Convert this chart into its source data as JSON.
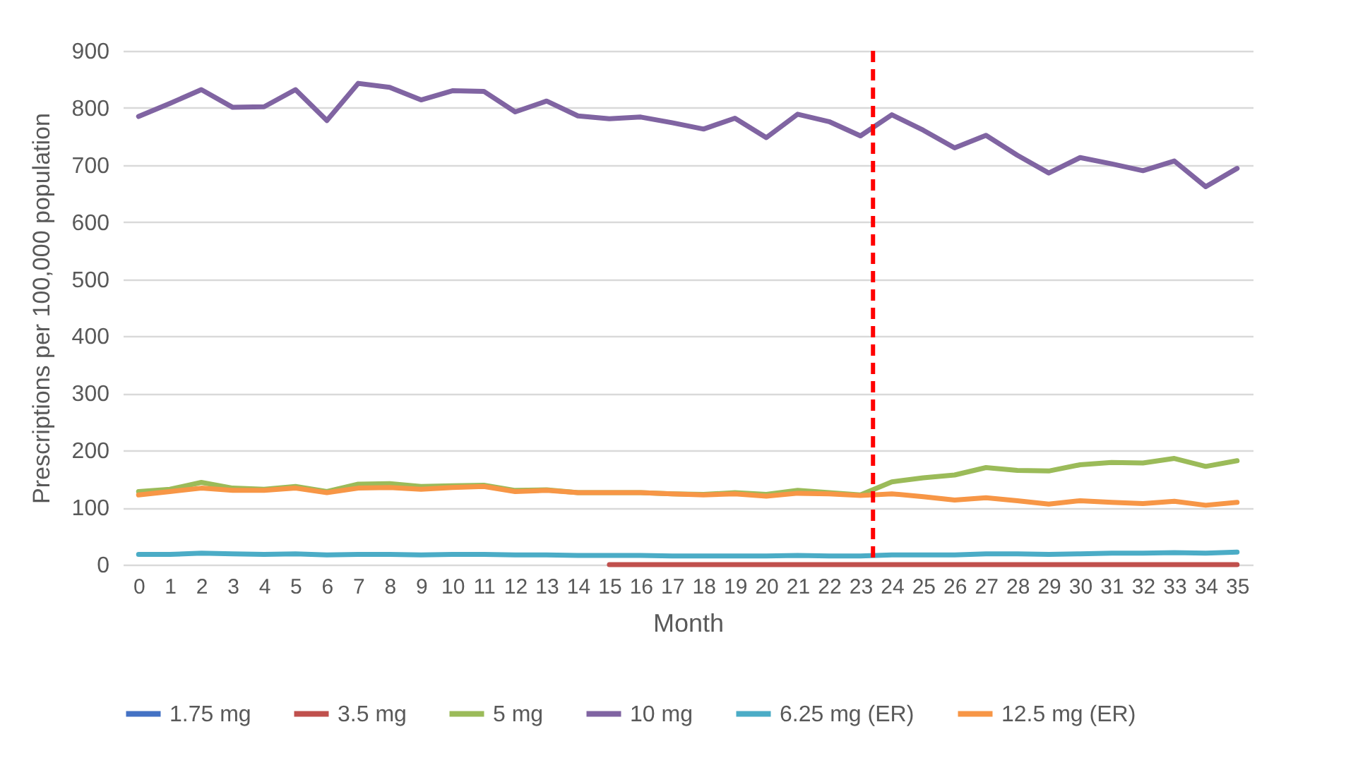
{
  "chart_data": {
    "type": "line",
    "xlabel": "Month",
    "ylabel": "Prescriptions per 100,000 population",
    "x": [
      0,
      1,
      2,
      3,
      4,
      5,
      6,
      7,
      8,
      9,
      10,
      11,
      12,
      13,
      14,
      15,
      16,
      17,
      18,
      19,
      20,
      21,
      22,
      23,
      24,
      25,
      26,
      27,
      28,
      29,
      30,
      31,
      32,
      33,
      34,
      35
    ],
    "xlim": [
      -0.5,
      35.5
    ],
    "xticks": [
      0,
      1,
      2,
      3,
      4,
      5,
      6,
      7,
      8,
      9,
      10,
      11,
      12,
      13,
      14,
      15,
      16,
      17,
      18,
      19,
      20,
      21,
      22,
      23,
      24,
      25,
      26,
      27,
      28,
      29,
      30,
      31,
      32,
      33,
      34,
      35
    ],
    "ylim": [
      0,
      900
    ],
    "yticks": [
      0,
      100,
      200,
      300,
      400,
      500,
      600,
      700,
      800,
      900
    ],
    "grid": "y",
    "legend": "bottom",
    "line_style": "solid",
    "series": [
      {
        "name": "1.75 mg",
        "color": "#4472c4",
        "values": [
          null,
          null,
          null,
          null,
          null,
          null,
          null,
          null,
          null,
          null,
          null,
          null,
          null,
          null,
          null,
          null,
          null,
          null,
          null,
          null,
          null,
          null,
          null,
          null,
          null,
          null,
          null,
          null,
          null,
          null,
          null,
          null,
          null,
          null,
          null,
          null
        ]
      },
      {
        "name": "3.5 mg",
        "color": "#c0504d",
        "values": [
          null,
          null,
          null,
          null,
          null,
          null,
          null,
          null,
          null,
          null,
          null,
          null,
          null,
          null,
          null,
          0,
          0,
          0,
          0,
          0,
          0,
          0,
          0,
          0,
          0,
          0,
          0,
          0,
          0,
          0,
          0,
          0,
          0,
          0,
          0,
          0
        ]
      },
      {
        "name": "5 mg",
        "color": "#9bbb59",
        "values": [
          128,
          132,
          144,
          134,
          132,
          137,
          128,
          141,
          142,
          137,
          138,
          139,
          130,
          131,
          126,
          126,
          126,
          124,
          123,
          126,
          123,
          130,
          126,
          122,
          145,
          152,
          157,
          170,
          165,
          164,
          175,
          179,
          178,
          186,
          172,
          182
        ]
      },
      {
        "name": "10 mg",
        "color": "#8064a2",
        "values": [
          785,
          808,
          832,
          801,
          802,
          832,
          778,
          843,
          836,
          814,
          830,
          829,
          793,
          812,
          786,
          781,
          784,
          774,
          763,
          782,
          748,
          789,
          776,
          751,
          788,
          761,
          730,
          752,
          717,
          686,
          713,
          702,
          690,
          707,
          662,
          694
        ]
      },
      {
        "name": "6.25 mg (ER)",
        "color": "#4bacc6",
        "values": [
          18,
          18,
          20,
          19,
          18,
          19,
          17,
          18,
          18,
          17,
          18,
          18,
          17,
          17,
          16,
          16,
          16,
          15,
          15,
          15,
          15,
          16,
          15,
          15,
          17,
          17,
          17,
          19,
          19,
          18,
          19,
          20,
          20,
          21,
          20,
          22
        ]
      },
      {
        "name": "12.5 mg (ER)",
        "color": "#f79646",
        "values": [
          122,
          128,
          134,
          130,
          130,
          134,
          126,
          134,
          135,
          132,
          135,
          137,
          128,
          130,
          126,
          126,
          126,
          124,
          122,
          124,
          120,
          125,
          124,
          121,
          124,
          119,
          113,
          117,
          112,
          106,
          112,
          109,
          107,
          111,
          104,
          109
        ]
      }
    ],
    "ref_lines": [
      {
        "axis": "x",
        "value": 23.4,
        "color": "#ff0000",
        "line_style": "dashed"
      }
    ]
  }
}
